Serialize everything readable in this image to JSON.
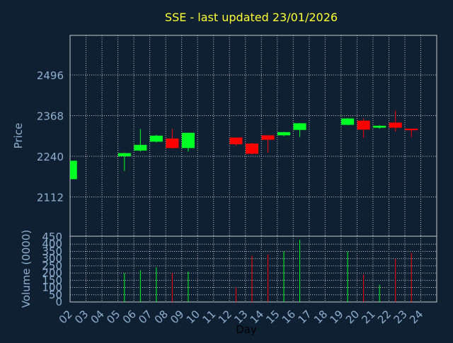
{
  "title": "SSE - last updated 23/01/2026",
  "colors": {
    "background": "#0f2033",
    "title": "#ffff33",
    "axis_text": "#8fb0d0",
    "frame": "#c8c8c8",
    "grid": "#c8c8c8",
    "up": "#00ff22",
    "down": "#ff0000"
  },
  "chart_data": [
    {
      "type": "candlestick",
      "ylabel": "Price",
      "yticks": [
        2112,
        2240,
        2368,
        2496
      ],
      "grid": true,
      "x": [
        "02",
        "03",
        "04",
        "05",
        "06",
        "07",
        "08",
        "09",
        "10",
        "11",
        "12",
        "13",
        "14",
        "15",
        "16",
        "17",
        "18",
        "19",
        "20",
        "21",
        "22",
        "23",
        "24"
      ],
      "candles": [
        {
          "day": "02",
          "open": 2168,
          "close": 2226,
          "high": 2226,
          "low": 2168
        },
        {
          "day": "05",
          "open": 2240,
          "close": 2250,
          "high": 2252,
          "low": 2194
        },
        {
          "day": "06",
          "open": 2258,
          "close": 2276,
          "high": 2326,
          "low": 2255
        },
        {
          "day": "07",
          "open": 2286,
          "close": 2305,
          "high": 2307,
          "low": 2284
        },
        {
          "day": "08",
          "open": 2296,
          "close": 2266,
          "high": 2326,
          "low": 2264
        },
        {
          "day": "09",
          "open": 2266,
          "close": 2314,
          "high": 2314,
          "low": 2255
        },
        {
          "day": "12",
          "open": 2299,
          "close": 2278,
          "high": 2299,
          "low": 2273
        },
        {
          "day": "13",
          "open": 2280,
          "close": 2248,
          "high": 2282,
          "low": 2246
        },
        {
          "day": "14",
          "open": 2306,
          "close": 2292,
          "high": 2306,
          "low": 2251
        },
        {
          "day": "15",
          "open": 2306,
          "close": 2316,
          "high": 2317,
          "low": 2303
        },
        {
          "day": "16",
          "open": 2323,
          "close": 2344,
          "high": 2345,
          "low": 2301
        },
        {
          "day": "19",
          "open": 2339,
          "close": 2359,
          "high": 2360,
          "low": 2338
        },
        {
          "day": "20",
          "open": 2352,
          "close": 2324,
          "high": 2360,
          "low": 2298
        },
        {
          "day": "21",
          "open": 2330,
          "close": 2336,
          "high": 2338,
          "low": 2327
        },
        {
          "day": "22",
          "open": 2346,
          "close": 2330,
          "high": 2384,
          "low": 2318
        },
        {
          "day": "23",
          "open": 2327,
          "close": 2322,
          "high": 2327,
          "low": 2300
        }
      ]
    },
    {
      "type": "bar",
      "ylabel": "Volume (0000)",
      "xlabel": "Day",
      "yticks": [
        0,
        50,
        100,
        150,
        200,
        250,
        300,
        350,
        400,
        450
      ],
      "ylim": [
        0,
        450
      ],
      "grid": true,
      "x": [
        "02",
        "03",
        "04",
        "05",
        "06",
        "07",
        "08",
        "09",
        "10",
        "11",
        "12",
        "13",
        "14",
        "15",
        "16",
        "17",
        "18",
        "19",
        "20",
        "21",
        "22",
        "23",
        "24"
      ],
      "bars": [
        {
          "day": "05",
          "value": 200,
          "dir": "up"
        },
        {
          "day": "06",
          "value": 220,
          "dir": "up"
        },
        {
          "day": "07",
          "value": 240,
          "dir": "up"
        },
        {
          "day": "08",
          "value": 200,
          "dir": "down"
        },
        {
          "day": "09",
          "value": 210,
          "dir": "up"
        },
        {
          "day": "12",
          "value": 100,
          "dir": "down"
        },
        {
          "day": "13",
          "value": 320,
          "dir": "down"
        },
        {
          "day": "14",
          "value": 330,
          "dir": "down"
        },
        {
          "day": "15",
          "value": 350,
          "dir": "up"
        },
        {
          "day": "16",
          "value": 430,
          "dir": "up"
        },
        {
          "day": "19",
          "value": 350,
          "dir": "up"
        },
        {
          "day": "20",
          "value": 190,
          "dir": "down"
        },
        {
          "day": "21",
          "value": 120,
          "dir": "up"
        },
        {
          "day": "22",
          "value": 300,
          "dir": "down"
        },
        {
          "day": "23",
          "value": 340,
          "dir": "down"
        }
      ]
    }
  ]
}
